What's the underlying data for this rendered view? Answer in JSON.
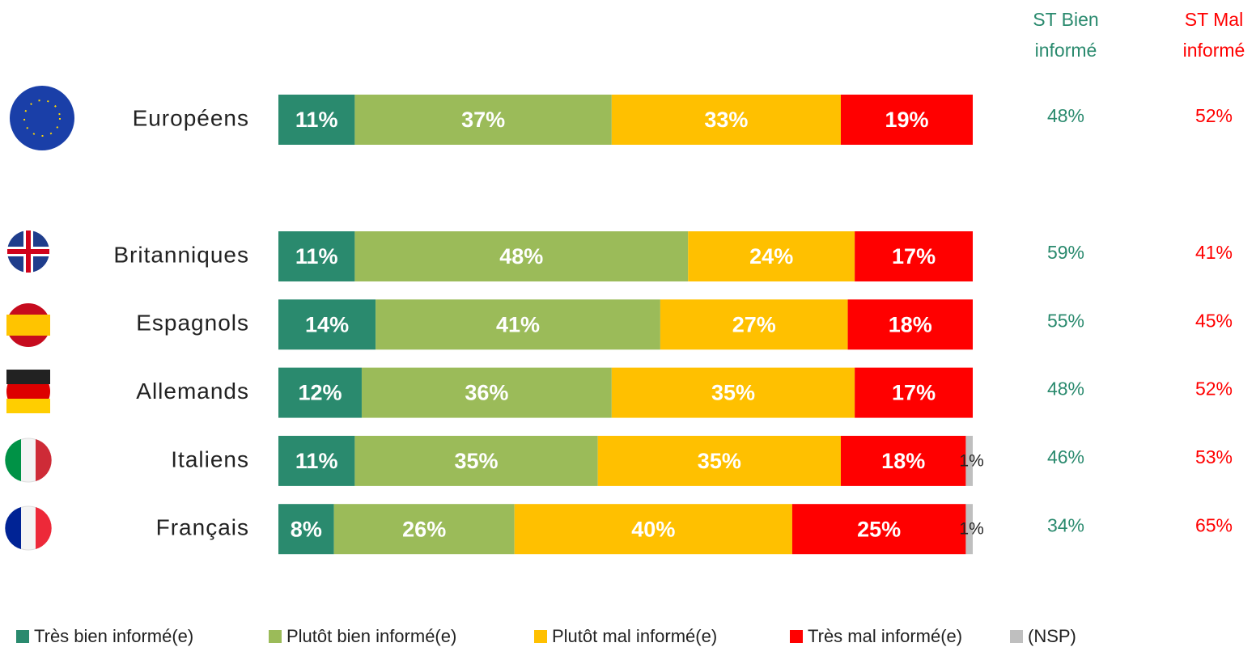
{
  "chart_data": {
    "type": "bar",
    "orientation": "horizontal",
    "stacked": true,
    "categories": [
      "Européens",
      "Britanniques",
      "Espagnols",
      "Allemands",
      "Italiens",
      "Français"
    ],
    "series": [
      {
        "name": "Très bien informé(e)",
        "color": "#2a8a6e",
        "values": [
          11,
          11,
          14,
          12,
          11,
          8
        ],
        "value_labels": [
          "11%",
          "11%",
          "14%",
          "12%",
          "11%",
          "8%"
        ]
      },
      {
        "name": "Plutôt bien informé(e)",
        "color": "#9bbb59",
        "values": [
          37,
          48,
          41,
          36,
          35,
          26
        ],
        "value_labels": [
          "37%",
          "48%",
          "41%",
          "36%",
          "35%",
          "26%"
        ]
      },
      {
        "name": "Plutôt mal informé(e)",
        "color": "#ffc000",
        "values": [
          33,
          24,
          27,
          35,
          35,
          40
        ],
        "value_labels": [
          "33%",
          "24%",
          "27%",
          "35%",
          "35%",
          "40%"
        ]
      },
      {
        "name": "Très mal informé(e)",
        "color": "#ff0000",
        "values": [
          19,
          17,
          18,
          17,
          18,
          25
        ],
        "value_labels": [
          "19%",
          "17%",
          "18%",
          "17%",
          "18%",
          "25%"
        ]
      },
      {
        "name": "(NSP)",
        "color": "#bfbfbf",
        "values": [
          null,
          null,
          null,
          null,
          1,
          1
        ],
        "value_labels": [
          null,
          null,
          null,
          null,
          "1%",
          "1%"
        ]
      }
    ],
    "summary_columns": [
      {
        "title": "ST Bien informé",
        "color": "#2a8a6e",
        "values": [
          48,
          59,
          55,
          48,
          46,
          34
        ],
        "value_labels": [
          "48%",
          "59%",
          "55%",
          "48%",
          "46%",
          "34%"
        ]
      },
      {
        "title": "ST Mal informé",
        "color": "#ff0000",
        "values": [
          52,
          41,
          45,
          52,
          53,
          65
        ],
        "value_labels": [
          "52%",
          "41%",
          "45%",
          "52%",
          "53%",
          "65%"
        ]
      }
    ]
  }
}
